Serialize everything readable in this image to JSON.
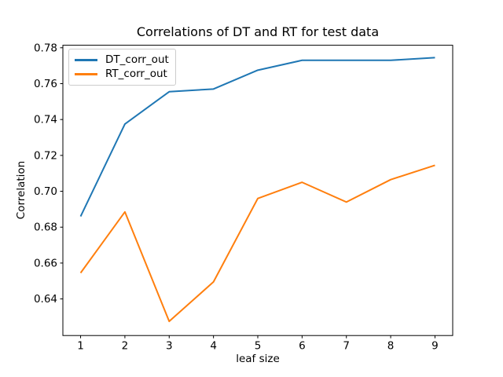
{
  "chart_data": {
    "type": "line",
    "title": "Correlations of DT and RT for test data",
    "xlabel": "leaf size",
    "ylabel": "Correlation",
    "x": [
      1,
      2,
      3,
      4,
      5,
      6,
      7,
      8,
      9
    ],
    "series": [
      {
        "name": "DT_corr_out",
        "color": "#1f77b4",
        "values": [
          0.686,
          0.7375,
          0.7555,
          0.757,
          0.7675,
          0.773,
          0.773,
          0.773,
          0.7745
        ]
      },
      {
        "name": "RT_corr_out",
        "color": "#ff7f0e",
        "values": [
          0.6545,
          0.6885,
          0.6275,
          0.6495,
          0.696,
          0.705,
          0.694,
          0.7065,
          0.7145
        ]
      }
    ],
    "xticks": [
      1,
      2,
      3,
      4,
      5,
      6,
      7,
      8,
      9
    ],
    "yticks": [
      0.64,
      0.66,
      0.68,
      0.7,
      0.72,
      0.74,
      0.76,
      0.78
    ],
    "xlim": [
      0.6,
      9.4
    ],
    "ylim": [
      0.6196,
      0.7814
    ],
    "grid": false,
    "legend_position": "upper left",
    "axis_color": "#000000",
    "background": "#ffffff"
  }
}
